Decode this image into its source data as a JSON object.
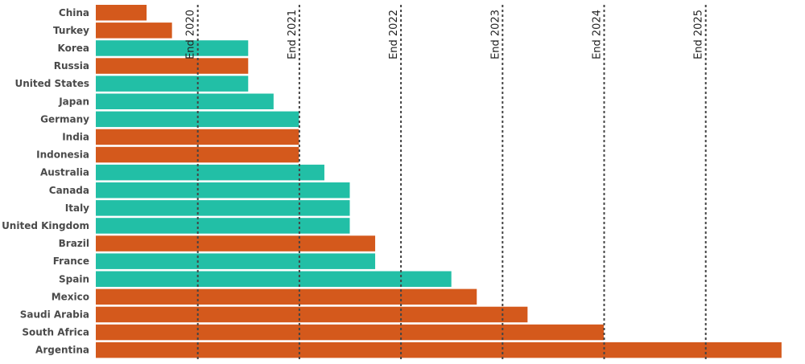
{
  "chart_data": {
    "type": "bar",
    "orientation": "horizontal",
    "categories": [
      "China",
      "Turkey",
      "Korea",
      "Russia",
      "United States",
      "Japan",
      "Germany",
      "India",
      "Indonesia",
      "Australia",
      "Canada",
      "Italy",
      "United Kingdom",
      "Brazil",
      "France",
      "Spain",
      "Mexico",
      "Saudi Arabia",
      "South Africa",
      "Argentina"
    ],
    "values": [
      0.5,
      0.75,
      1.5,
      1.5,
      1.5,
      1.75,
      2.0,
      2.0,
      2.0,
      2.25,
      2.5,
      2.5,
      2.5,
      2.75,
      2.75,
      3.5,
      3.75,
      4.25,
      5.0,
      6.75
    ],
    "groups": [
      "emerging",
      "emerging",
      "advanced",
      "emerging",
      "advanced",
      "advanced",
      "advanced",
      "emerging",
      "emerging",
      "advanced",
      "advanced",
      "advanced",
      "advanced",
      "emerging",
      "advanced",
      "advanced",
      "emerging",
      "emerging",
      "emerging",
      "emerging"
    ],
    "colors": {
      "advanced": "#22bfa6",
      "emerging": "#d4591c",
      "reference_line": "#444444"
    },
    "reference_lines": [
      {
        "label": "End 2020",
        "value": 1
      },
      {
        "label": "End 2021",
        "value": 2
      },
      {
        "label": "End 2022",
        "value": 3
      },
      {
        "label": "End 2023",
        "value": 4
      },
      {
        "label": "End 2024",
        "value": 5
      },
      {
        "label": "End 2025",
        "value": 6
      }
    ],
    "xlim": [
      0,
      6.75
    ],
    "title": "",
    "xlabel": "",
    "ylabel": "",
    "grid": false,
    "legend": "none"
  }
}
